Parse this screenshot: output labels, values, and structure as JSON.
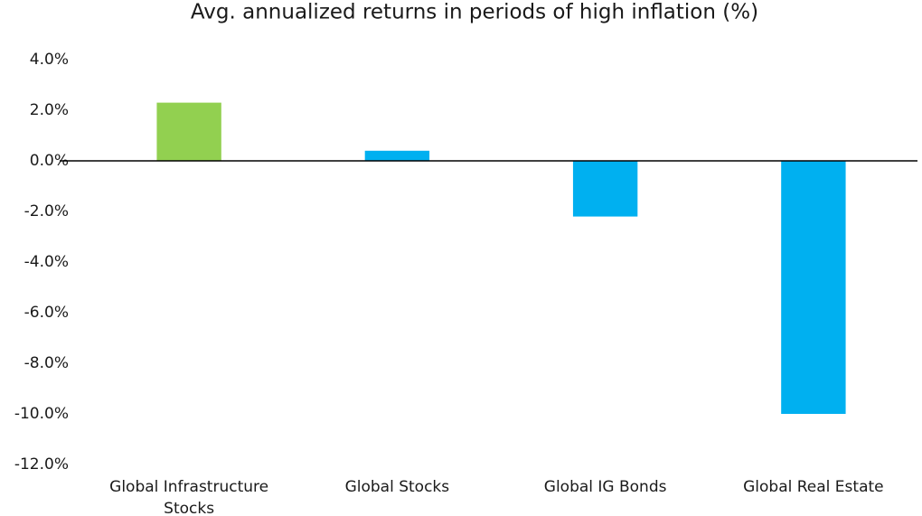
{
  "chart_data": {
    "type": "bar",
    "title": "Avg. annualized returns in periods of high inflation (%)",
    "categories": [
      "Global Infrastructure Stocks",
      "Global Stocks",
      "Global IG Bonds",
      "Global Real Estate"
    ],
    "values": [
      2.3,
      0.4,
      -2.2,
      -10.0
    ],
    "colors": [
      "#92d050",
      "#00b0f0",
      "#00b0f0",
      "#00b0f0"
    ],
    "ylim": [
      -12,
      4
    ],
    "yticks": [
      {
        "value": 4,
        "label": "4.0%"
      },
      {
        "value": 2,
        "label": "2.0%"
      },
      {
        "value": 0,
        "label": "0.0%"
      },
      {
        "value": -2,
        "label": "-2.0%"
      },
      {
        "value": -4,
        "label": "-4.0%"
      },
      {
        "value": -6,
        "label": "-6.0%"
      },
      {
        "value": -8,
        "label": "-8.0%"
      },
      {
        "value": -10,
        "label": "-10.0%"
      },
      {
        "value": -12,
        "label": "-12.0%"
      }
    ],
    "grid": false
  }
}
